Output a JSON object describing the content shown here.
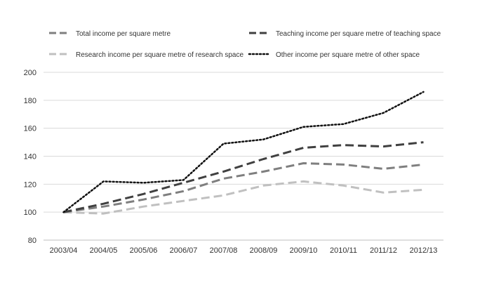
{
  "chart_data": {
    "type": "line",
    "title": "",
    "xlabel": "",
    "ylabel": "",
    "categories": [
      "2003/04",
      "2004/05",
      "2005/06",
      "2006/07",
      "2007/08",
      "2008/09",
      "2009/10",
      "2010/11",
      "2011/12",
      "2012/13"
    ],
    "ylim": [
      80,
      200
    ],
    "yticks": [
      80,
      100,
      120,
      140,
      160,
      180,
      200
    ],
    "grid": true,
    "legend_position": "top",
    "series": [
      {
        "name": "Total income per square metre",
        "color": "#7f7f7f",
        "dash": "long-dash",
        "values": [
          100,
          104,
          109,
          115,
          124,
          129,
          135,
          134,
          131,
          134
        ]
      },
      {
        "name": "Teaching income per square metre of teaching space",
        "color": "#404040",
        "dash": "long-dash",
        "values": [
          100,
          106,
          113,
          121,
          129,
          138,
          146,
          148,
          147,
          150
        ]
      },
      {
        "name": "Research income per square metre of research space",
        "color": "#c0c0c0",
        "dash": "long-dash",
        "values": [
          100,
          99,
          104,
          108,
          112,
          119,
          122,
          119,
          114,
          116
        ]
      },
      {
        "name": "Other income per square metre of other space",
        "color": "#111111",
        "dash": "dotted",
        "values": [
          100,
          122,
          121,
          123,
          149,
          152,
          161,
          163,
          171,
          186
        ]
      }
    ]
  }
}
